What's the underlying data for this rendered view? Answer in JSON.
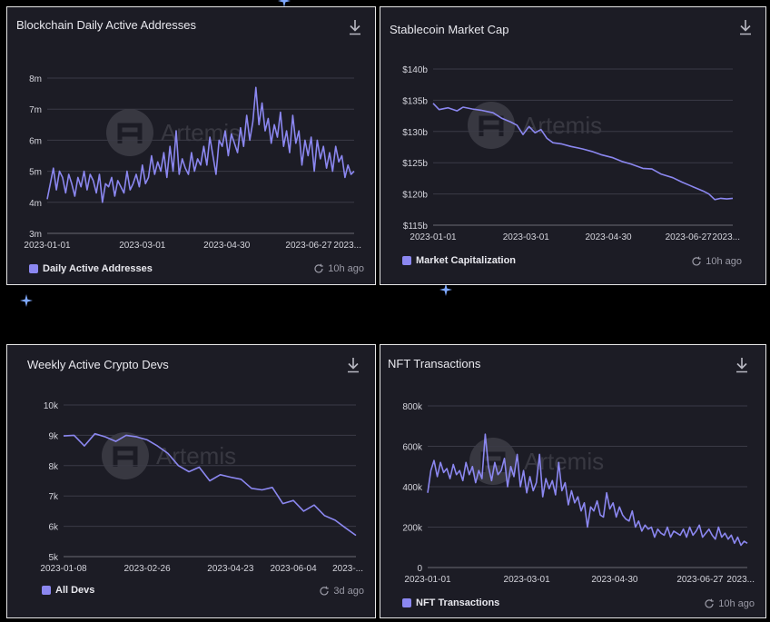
{
  "panels": [
    {
      "title": "Blockchain Daily Active Addresses",
      "legend": "Daily Active Addresses",
      "updated": "10h ago",
      "watermark": "Artemis",
      "chart_data": {
        "type": "line",
        "title": "Blockchain Daily Active Addresses",
        "ylim": [
          3,
          8
        ],
        "yticks": [
          3,
          4,
          5,
          6,
          7,
          8
        ],
        "ytick_labels": [
          "3m",
          "4m",
          "5m",
          "6m",
          "7m",
          "8m"
        ],
        "xlim": [
          0,
          1
        ],
        "xticks": [
          0,
          0.31,
          0.585,
          0.852,
          0.994
        ],
        "xtick_labels": [
          "2023-01-01",
          "2023-03-01",
          "2023-04-30",
          "2023-06-27",
          "2023..."
        ],
        "series": [
          {
            "name": "Daily Active Addresses",
            "color": "#8b87f0",
            "x": [
              0,
              0.01,
              0.02,
              0.03,
              0.04,
              0.05,
              0.06,
              0.07,
              0.08,
              0.09,
              0.1,
              0.11,
              0.12,
              0.13,
              0.14,
              0.15,
              0.16,
              0.17,
              0.18,
              0.19,
              0.2,
              0.21,
              0.22,
              0.23,
              0.24,
              0.25,
              0.26,
              0.27,
              0.28,
              0.29,
              0.3,
              0.31,
              0.32,
              0.33,
              0.34,
              0.35,
              0.36,
              0.37,
              0.38,
              0.39,
              0.4,
              0.41,
              0.42,
              0.43,
              0.44,
              0.45,
              0.46,
              0.47,
              0.48,
              0.49,
              0.5,
              0.51,
              0.52,
              0.53,
              0.54,
              0.55,
              0.56,
              0.57,
              0.58,
              0.59,
              0.6,
              0.61,
              0.62,
              0.63,
              0.64,
              0.65,
              0.66,
              0.67,
              0.68,
              0.69,
              0.7,
              0.71,
              0.72,
              0.73,
              0.74,
              0.75,
              0.76,
              0.77,
              0.78,
              0.79,
              0.8,
              0.81,
              0.82,
              0.83,
              0.84,
              0.85,
              0.86,
              0.87,
              0.88,
              0.89,
              0.9,
              0.91,
              0.92,
              0.93,
              0.94,
              0.95,
              0.96,
              0.97,
              0.98,
              0.99,
              1
            ],
            "y": [
              4.1,
              4.6,
              5.1,
              4.4,
              5.0,
              4.8,
              4.3,
              4.9,
              4.6,
              4.2,
              4.8,
              4.5,
              5.0,
              4.4,
              4.9,
              4.7,
              4.3,
              4.9,
              4.0,
              4.6,
              4.5,
              4.8,
              4.2,
              4.7,
              4.5,
              4.3,
              5.0,
              4.4,
              4.6,
              4.9,
              4.5,
              5.2,
              4.6,
              4.8,
              5.5,
              4.9,
              5.3,
              5.0,
              5.6,
              4.8,
              5.8,
              5.0,
              6.3,
              4.9,
              5.4,
              5.1,
              4.9,
              5.6,
              5.0,
              5.4,
              5.2,
              5.8,
              5.2,
              6.1,
              5.5,
              4.9,
              6.0,
              5.8,
              6.3,
              5.5,
              6.2,
              5.9,
              5.6,
              6.4,
              5.8,
              6.8,
              6.0,
              6.6,
              7.7,
              6.5,
              7.2,
              6.3,
              6.7,
              5.9,
              6.5,
              6.1,
              6.9,
              5.8,
              6.3,
              5.6,
              6.8,
              5.9,
              6.3,
              5.2,
              6.0,
              5.5,
              6.1,
              5.0,
              6.0,
              5.4,
              5.8,
              5.1,
              5.6,
              5.0,
              5.8,
              5.3,
              5.5,
              4.8,
              5.2,
              4.9,
              5.0
            ]
          }
        ]
      }
    },
    {
      "title": "Stablecoin Market Cap",
      "legend": "Market Capitalization",
      "updated": "10h ago",
      "watermark": "Artemis",
      "chart_data": {
        "type": "line",
        "title": "Stablecoin Market Cap",
        "ylim": [
          115,
          140
        ],
        "yticks": [
          115,
          120,
          125,
          130,
          135,
          140
        ],
        "ytick_labels": [
          "$115b",
          "$120b",
          "$125b",
          "$130b",
          "$135b",
          "$140b"
        ],
        "xlim": [
          0,
          1
        ],
        "xticks": [
          0,
          0.31,
          0.585,
          0.852,
          0.994
        ],
        "xtick_labels": [
          "2023-01-01",
          "2023-03-01",
          "2023-04-30",
          "2023-06-27",
          "2023..."
        ],
        "series": [
          {
            "name": "Market Capitalization",
            "color": "#8b87f0",
            "x": [
              0,
              0.02,
              0.05,
              0.08,
              0.1,
              0.13,
              0.16,
              0.2,
              0.23,
              0.26,
              0.28,
              0.3,
              0.32,
              0.34,
              0.36,
              0.38,
              0.4,
              0.43,
              0.46,
              0.5,
              0.53,
              0.56,
              0.6,
              0.63,
              0.66,
              0.7,
              0.73,
              0.76,
              0.8,
              0.83,
              0.86,
              0.9,
              0.92,
              0.94,
              0.96,
              0.98,
              1
            ],
            "y": [
              134.5,
              133.5,
              133.8,
              133.3,
              133.9,
              133.6,
              133.4,
              133.0,
              132.1,
              131.5,
              131.0,
              129.5,
              130.8,
              129.8,
              130.3,
              128.9,
              128.2,
              128.0,
              127.6,
              127.2,
              126.8,
              126.3,
              125.8,
              125.2,
              124.8,
              124.1,
              124.0,
              123.2,
              122.6,
              121.9,
              121.3,
              120.5,
              120.0,
              119.1,
              119.3,
              119.2,
              119.3
            ]
          }
        ]
      }
    },
    {
      "title": "Weekly Active Crypto Devs",
      "legend": "All Devs",
      "updated": "3d ago",
      "watermark": "Artemis",
      "chart_data": {
        "type": "line",
        "title": "Weekly Active Crypto Devs",
        "ylim": [
          5,
          10
        ],
        "yticks": [
          5,
          6,
          7,
          8,
          9,
          10
        ],
        "ytick_labels": [
          "5k",
          "6k",
          "7k",
          "8k",
          "9k",
          "10k"
        ],
        "xlim": [
          0,
          1
        ],
        "xticks": [
          0,
          0.286,
          0.571,
          0.786,
          1.0
        ],
        "xtick_labels": [
          "2023-01-08",
          "2023-02-26",
          "2023-04-23",
          "2023-06-04",
          "2023-..."
        ],
        "series": [
          {
            "name": "All Devs",
            "color": "#8b87f0",
            "x": [
              0,
              0.036,
              0.071,
              0.107,
              0.143,
              0.179,
              0.214,
              0.25,
              0.286,
              0.321,
              0.357,
              0.393,
              0.429,
              0.464,
              0.5,
              0.536,
              0.571,
              0.607,
              0.643,
              0.679,
              0.714,
              0.75,
              0.786,
              0.821,
              0.857,
              0.893,
              0.929,
              0.964,
              1.0
            ],
            "y": [
              8.98,
              9.0,
              8.65,
              9.05,
              8.95,
              8.8,
              9.0,
              8.95,
              8.85,
              8.65,
              8.4,
              8.0,
              7.8,
              7.95,
              7.5,
              7.7,
              7.62,
              7.55,
              7.25,
              7.2,
              7.28,
              6.75,
              6.85,
              6.5,
              6.7,
              6.35,
              6.2,
              5.95,
              5.7
            ]
          }
        ]
      }
    },
    {
      "title": "NFT Transactions",
      "legend": "NFT Transactions",
      "updated": "10h ago",
      "watermark": "Artemis",
      "chart_data": {
        "type": "line",
        "title": "NFT Transactions",
        "ylim": [
          0,
          800
        ],
        "yticks": [
          0,
          200,
          400,
          600,
          800
        ],
        "ytick_labels": [
          "0",
          "200k",
          "400k",
          "600k",
          "800k"
        ],
        "xlim": [
          0,
          1
        ],
        "xticks": [
          0,
          0.31,
          0.585,
          0.852,
          0.994
        ],
        "xtick_labels": [
          "2023-01-01",
          "2023-03-01",
          "2023-04-30",
          "2023-06-27",
          "2023..."
        ],
        "series": [
          {
            "name": "NFT Transactions",
            "color": "#8b87f0",
            "x": [
              0,
              0.01,
              0.02,
              0.03,
              0.04,
              0.05,
              0.06,
              0.07,
              0.08,
              0.09,
              0.1,
              0.11,
              0.12,
              0.13,
              0.14,
              0.15,
              0.16,
              0.17,
              0.18,
              0.19,
              0.2,
              0.21,
              0.22,
              0.23,
              0.24,
              0.25,
              0.26,
              0.27,
              0.28,
              0.29,
              0.3,
              0.31,
              0.32,
              0.33,
              0.34,
              0.35,
              0.36,
              0.37,
              0.38,
              0.39,
              0.4,
              0.41,
              0.42,
              0.43,
              0.44,
              0.45,
              0.46,
              0.47,
              0.48,
              0.49,
              0.5,
              0.51,
              0.52,
              0.53,
              0.54,
              0.55,
              0.56,
              0.57,
              0.58,
              0.59,
              0.6,
              0.61,
              0.62,
              0.63,
              0.64,
              0.65,
              0.66,
              0.67,
              0.68,
              0.69,
              0.7,
              0.71,
              0.72,
              0.73,
              0.74,
              0.75,
              0.76,
              0.77,
              0.78,
              0.79,
              0.8,
              0.81,
              0.82,
              0.83,
              0.84,
              0.85,
              0.86,
              0.87,
              0.88,
              0.89,
              0.9,
              0.91,
              0.92,
              0.93,
              0.94,
              0.95,
              0.96,
              0.97,
              0.98,
              0.99,
              1
            ],
            "y": [
              370,
              480,
              530,
              450,
              520,
              470,
              490,
              440,
              510,
              460,
              480,
              430,
              520,
              460,
              500,
              420,
              480,
              440,
              660,
              500,
              430,
              520,
              460,
              480,
              540,
              400,
              500,
              450,
              560,
              400,
              480,
              370,
              450,
              380,
              420,
              560,
              350,
              440,
              390,
              430,
              360,
              520,
              380,
              420,
              310,
              380,
              320,
              350,
              280,
              320,
              200,
              300,
              280,
              330,
              260,
              250,
              370,
              290,
              320,
              250,
              300,
              260,
              240,
              230,
              280,
              200,
              230,
              180,
              210,
              190,
              200,
              150,
              190,
              170,
              160,
              200,
              150,
              180,
              170,
              160,
              190,
              150,
              200,
              160,
              180,
              210,
              150,
              170,
              190,
              160,
              140,
              200,
              150,
              170,
              140,
              160,
              120,
              150,
              110,
              130,
              120
            ]
          }
        ]
      }
    }
  ]
}
